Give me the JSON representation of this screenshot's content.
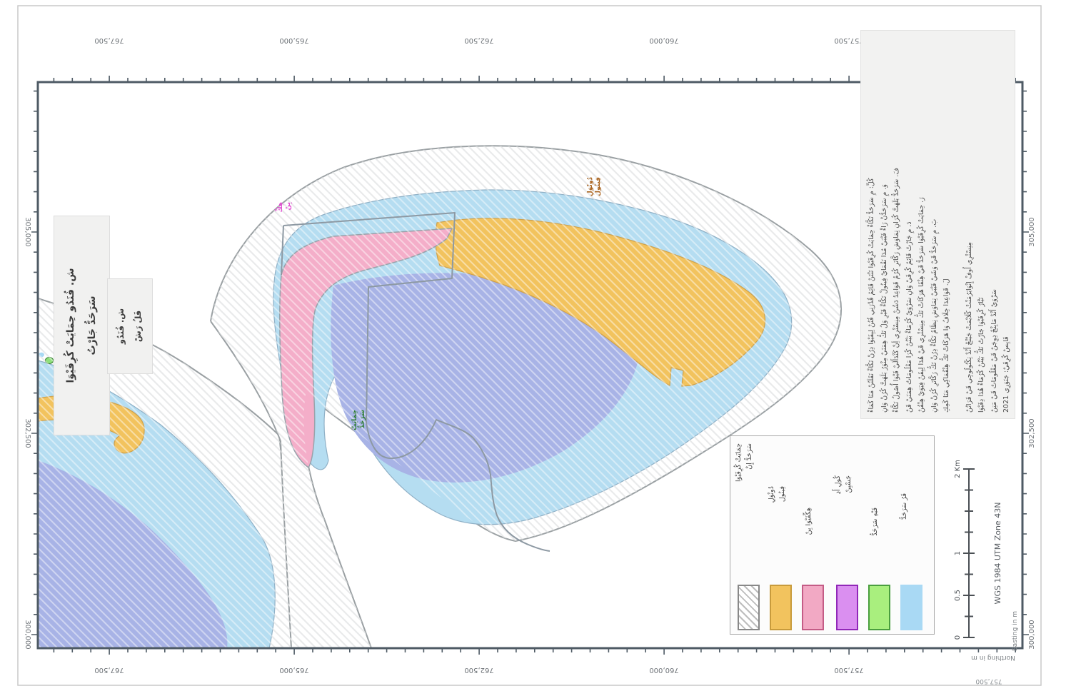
{
  "document": {
    "type": "protected-area-map-sheet",
    "year": "2021",
    "script_note": "labels shown in Thaana-style script (approximated)"
  },
  "axes": {
    "x_title": "Easting in m",
    "y_title": "Northing in m",
    "top": [
      "767,500",
      "765,000",
      "762,500",
      "760,000",
      "757,500"
    ],
    "bottom": [
      "767,500",
      "765,000",
      "762,500",
      "760,000",
      "757,500"
    ],
    "left": [
      "305,000",
      "302,500",
      "300,000"
    ],
    "right": [
      "305,000",
      "302,500",
      "300,000"
    ],
    "corner_bottom": "757,500"
  },
  "scalebar": {
    "labels": [
      "0",
      "0.5",
      "1",
      "2 Km"
    ],
    "crs": "WGS 1984 UTM Zone 43N"
  },
  "title_box": {
    "line1": "ش. فُنَدُو حِمَايَتْ كُرِفَيْوَا",
    "line2": "سَرَحَدُّ جَارْتُ"
  },
  "subtitle_box": {
    "line1": "ش. فُنَدُو",
    "line2": "فَلُ رَشْ"
  },
  "annotation": {
    "para1": [
      "كُلِّ: مِ سَرَحَدُّ تَكَّاءْ حِمَايَتْ كُرِفَيْوَا تَنْتَنْ قَائِمُ قُدْرَتِي فُتُنْ لِبِفَيْوَا دِرُنْ تَكَّاءْ نَقَلَنُنْ مَنَا كَمَاءْ",
      "وَ. مِ سَرَحَدُّنْ رَاءْ فَيْبَيْ مُدَا نَقُمَايْ فِينُولْ تَكَّاءْ قَيْرِ وَلُ تَكُّ هِمَنَيْ مِنْوَرُ بَلَهَتَّ كُرُنْ وَانِ",
      "فَ. سَرَحَدُّ بَلَهَتَّ كُرَانِ تِمَاوَشِ رَكَّاتَرِ كُرُمُ قَوَاعِدُ دَشُنْ مِنِسْتْرِي أِنْ كَنْدَأَلَيْ فَيْوَا أُصُولُ تَكَّاءْ",
      "دَ. مِ جَارْتُ قَائِمُ كُرِفَيْ وَانِ سَرْوَيْ كُرُمَاءْ بَيْنُنْ كُرَا مَعْلُومَاتُ هِمَنَيْ قَنْ",
      "رَ. حِمَايَتْ كُرِفَيْوَا سَرَحَدُّ قَيْ هِنْقَا هَرَكَاتْ تَكُّ مِنِسْتْرِي قَيْ هُدَا لِبِقَنْ فِيَوَيْ هِنْقُنْ",
      "بَ. مِ سَرَحَدُّ قَيْ وَشَيْ فَيْبَيْ تِمَاوَشِ نِظَامُ تَكَّاءْ دِرُنْ تَكُّ رَكَّاتَرِ كُرُنْ وَانِ",
      "لَ. قَوَاعِدَا خِلَافُ وَا هَرَكَاتْ تَكُّ هِنْقُمَاكِي مَنَا كَمِكِ"
    ],
    "para2": [
      "مِنِسْتْرِي أُوفْ إِنْوَايَرُمَنْتْ كْلَايْمَتْ جَيْنْجْ أَنْدْ تِكْنُولُوجِي قَيْ فَرَاتُنْ",
      "تَيَّارُ كُرِفَيْوَا جَارْتُ تَكُّ بَيْنُنْ كُرُمَاءْ هُدَا دِفَيْوَا",
      "سَرْوَيْ أَنْدْ مَابِنْجْ دِوِجَنْ قَيْ مَعْلُومَاتُ قَيْ مَتِنْ",
      "فَايِسْ كُرِفَيْ: جَنَوَرِي 2021"
    ]
  },
  "legend": {
    "items": [
      {
        "key": "protected-area-boundary",
        "label1": "حِمَايَتْ كُرِفَيْوَا",
        "label2": "سَرَحَدُّ إِنْ",
        "fill": "hatch",
        "border": "#8f8f8f"
      },
      {
        "key": "sandbank",
        "label1": "دُونْوَلِ",
        "label2": "فِينُول",
        "fill": "#f2c35e",
        "border": "#c89b3c"
      },
      {
        "key": "reclaimed-land",
        "label1": "هِكِّفَيْوَا بِنْ",
        "fill": "#f2a9c4",
        "border": "#c45c86"
      },
      {
        "key": "wetland",
        "label1": "كُولِ أَدِ",
        "label2": "جَسْبِنْ",
        "fill": "#da8ff0",
        "border": "#9127b8"
      },
      {
        "key": "vegetation",
        "label1": "فَيْهِ سَرَحَدُّ",
        "fill": "#a9ef7e",
        "border": "#4a9e3f"
      },
      {
        "key": "reef-flat",
        "label1": "فَرُ سَرَحَدُّ",
        "fill": "#a9d9f4",
        "border": "#a9d9f4"
      }
    ]
  },
  "map_labels": {
    "magenta": {
      "line1": "هِكِّ",
      "line2": "بِنْ"
    },
    "orange": {
      "line1": "دُونْوَلِ",
      "line2": "فِينُول"
    },
    "green": {
      "line1": "حِمَايَتْ",
      "line2": "سَرَحَدُّ"
    }
  },
  "colors": {
    "frame": "#4e5a64",
    "hatch_line": "#d7d9da",
    "zone_outline": "#9aa0a3",
    "reef_flat": "#b5ddf1",
    "reef_outline": "#8fb0c6",
    "lagoon": "#a8b3e6",
    "sandbank": "#f2c35e",
    "sandbank_outline": "#cfa14b",
    "reclaimed": "#f4aec9",
    "boundary_line": "#8d99a3",
    "label_magenta": "#e24fd3",
    "label_orange": "#a9621c",
    "label_green": "#2e7d32"
  }
}
